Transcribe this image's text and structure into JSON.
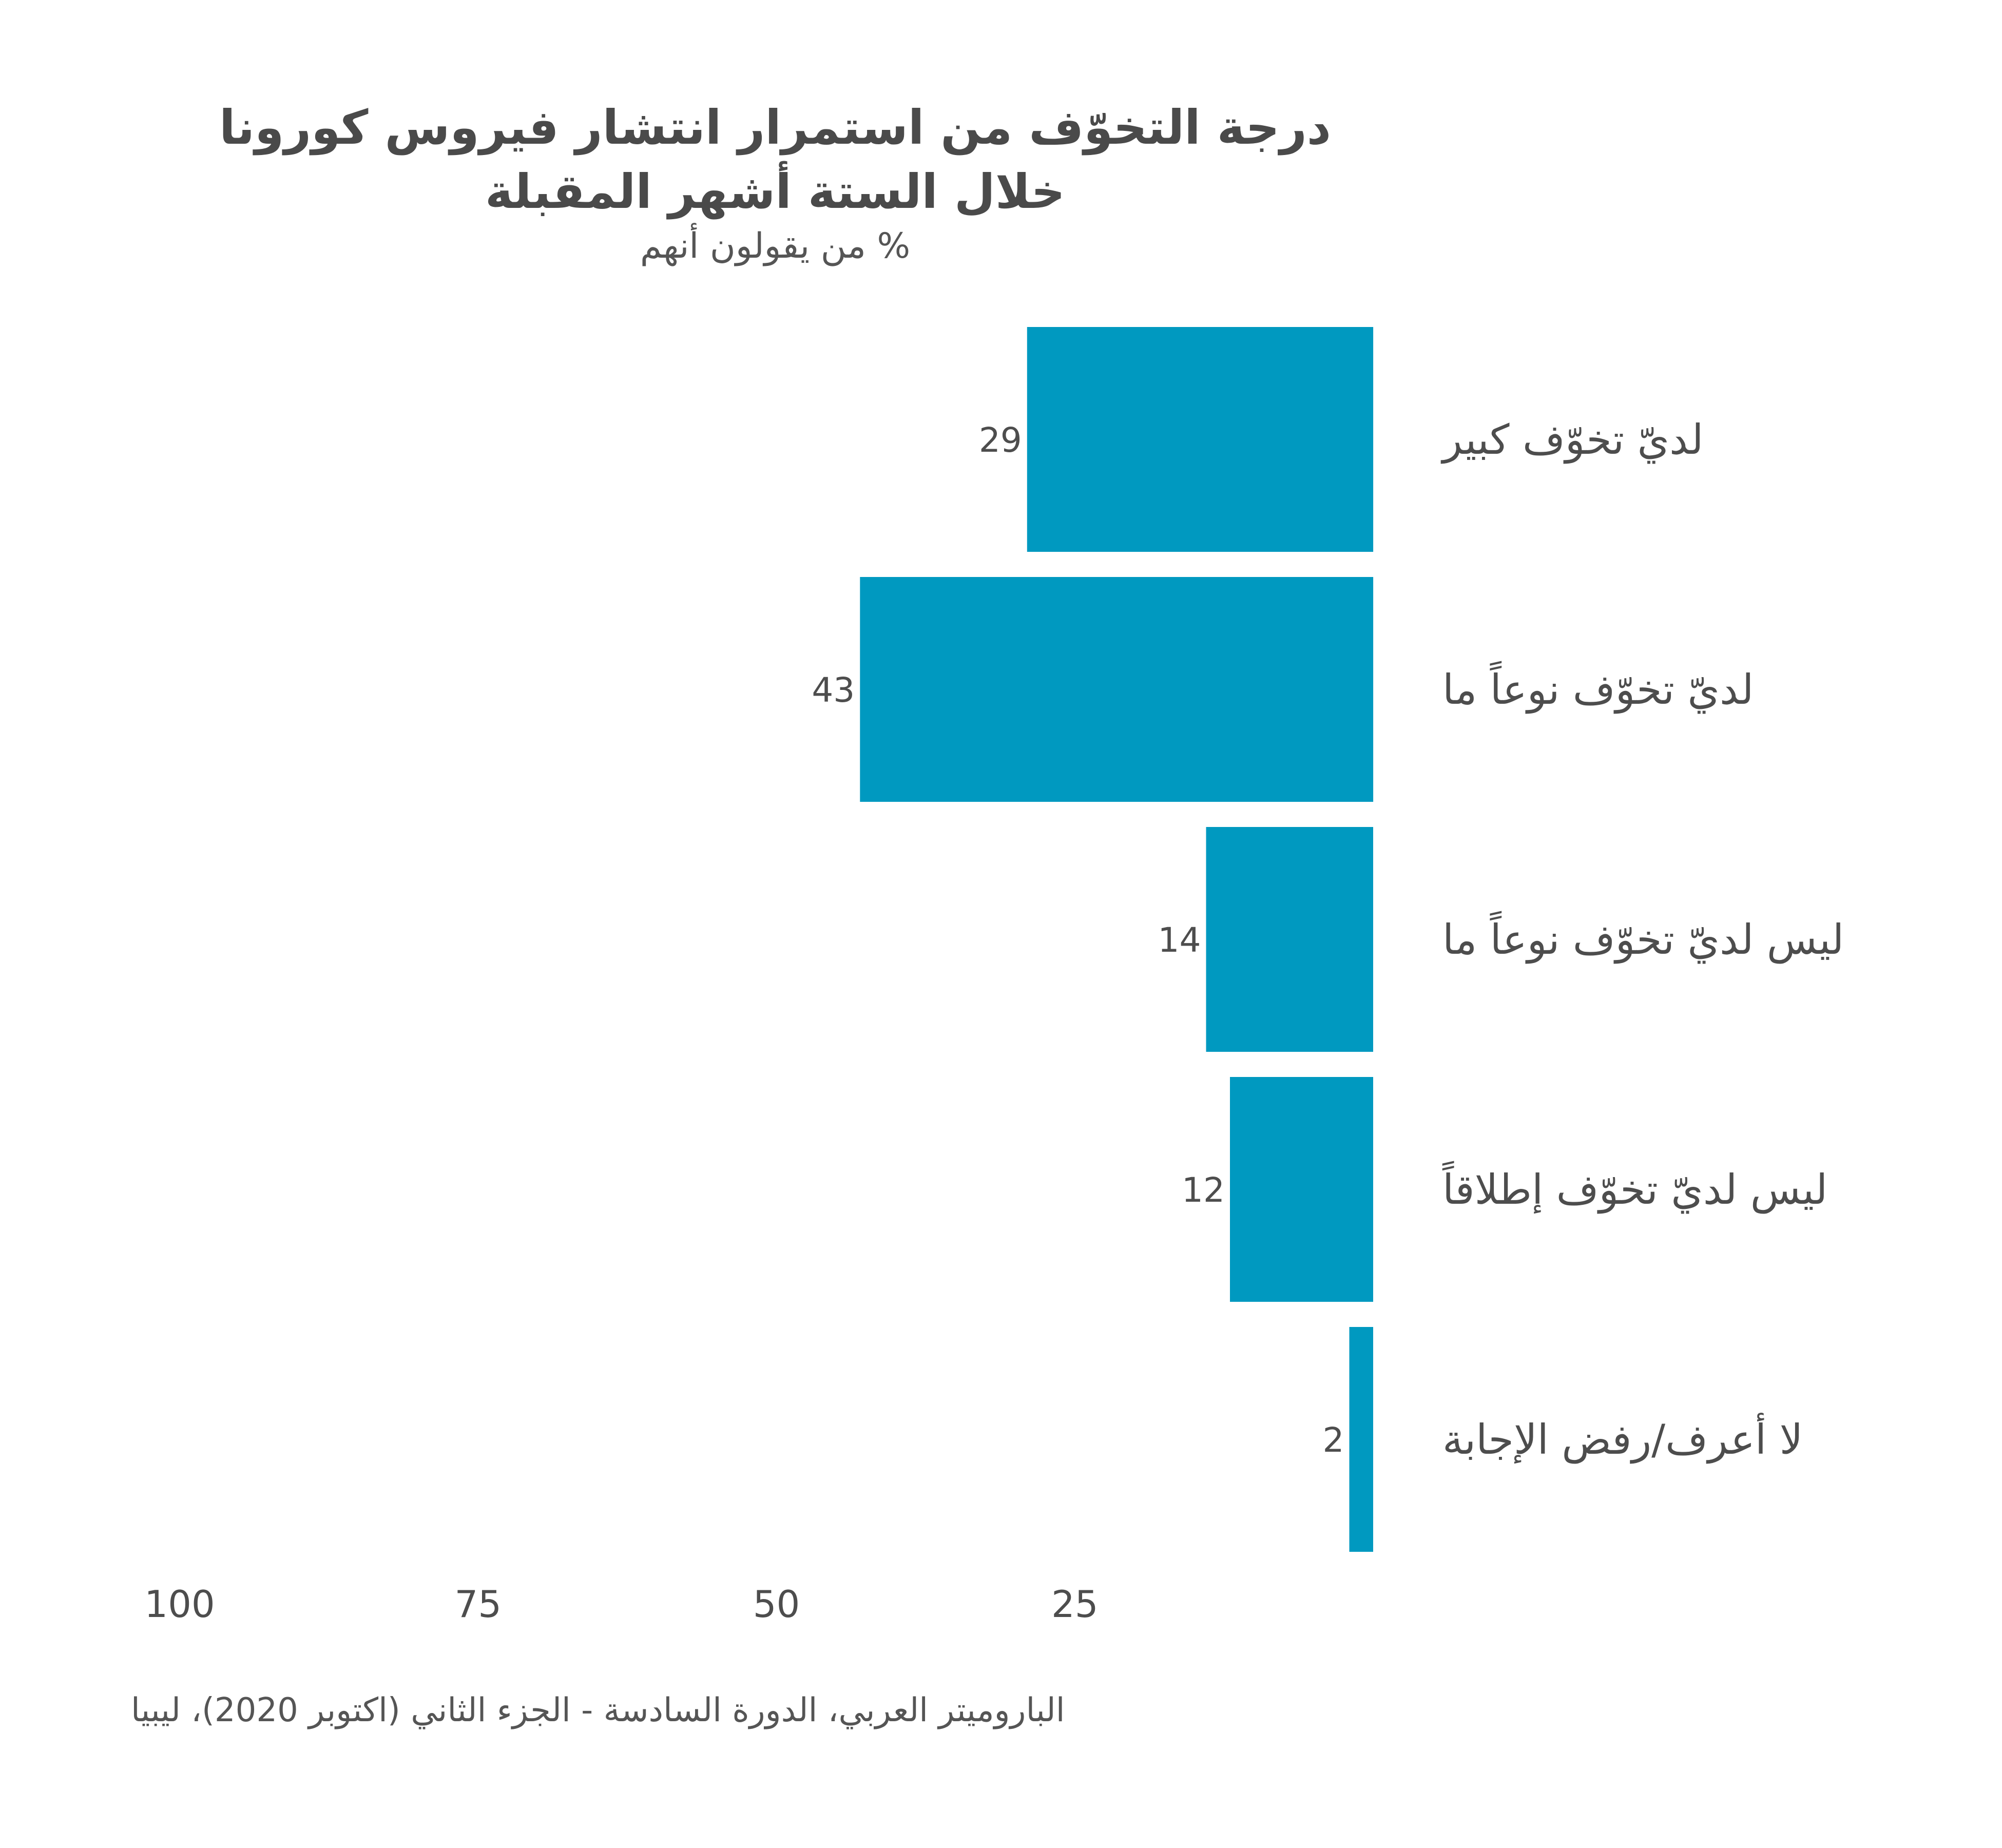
{
  "chart_data": {
    "type": "bar",
    "orientation": "horizontal",
    "title_lines": [
      "درجة التخوّف من استمرار انتشار فيروس كورونا",
      "خلال الستة أشهر المقبلة"
    ],
    "subtitle": "% من يقولون أنهم",
    "categories": [
      "لديّ تخوّف كبير",
      "لديّ تخوّف نوعاً ما",
      "ليس لديّ تخوّف نوعاً ما",
      "ليس لديّ تخوّف إطلاقاً",
      "لا أعرف/رفض الإجابة"
    ],
    "values": [
      29,
      43,
      14,
      12,
      2
    ],
    "value_labels": [
      "29",
      "43",
      "14",
      "12",
      "2"
    ],
    "xlim": [
      0,
      100
    ],
    "x_ticks": [
      100,
      75,
      50,
      25
    ],
    "x_tick_labels": [
      "100",
      "75",
      "50",
      "25"
    ],
    "x_direction": "reversed",
    "grid": false,
    "legend": "none",
    "bar_color": "#0099c0"
  },
  "source": "الباروميتر العربي، الدورة السادسة - الجزء الثاني (اكتوبر 2020)، ليبيا"
}
